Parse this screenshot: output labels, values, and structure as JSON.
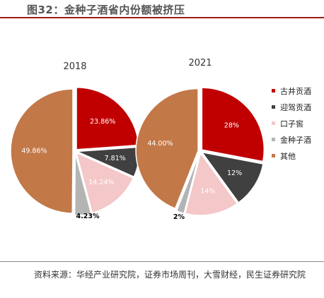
{
  "figure": {
    "title": "图32：金种子酒省内份额被挤压",
    "source": "资料来源：华经产业研究院，证券市场周刊，大雪财经，民生证券研究院"
  },
  "colors": {
    "title_rule": "#9e1c1c",
    "series": [
      "#c00000",
      "#404040",
      "#f4c7c8",
      "#b4b4b4",
      "#c27847"
    ]
  },
  "chart_data": [
    {
      "type": "pie",
      "title": "2018",
      "labels": [
        "古井贡酒",
        "迎驾贡酒",
        "口子窖",
        "金种子酒",
        "其他"
      ],
      "values": [
        23.86,
        7.81,
        14.24,
        4.23,
        49.86
      ],
      "value_labels": [
        "23.86%",
        "7.81%",
        "14.24%",
        "4.23%",
        "49.86%"
      ]
    },
    {
      "type": "pie",
      "title": "2021",
      "labels": [
        "古井贡酒",
        "迎驾贡酒",
        "口子窖",
        "金种子酒",
        "其他"
      ],
      "values": [
        28,
        12,
        14,
        2,
        44.0
      ],
      "value_labels": [
        "28%",
        "12%",
        "14%",
        "2%",
        "44.00%"
      ]
    }
  ],
  "legend": {
    "position": "right",
    "items": [
      "古井贡酒",
      "迎驾贡酒",
      "口子窖",
      "金种子酒",
      "其他"
    ]
  }
}
